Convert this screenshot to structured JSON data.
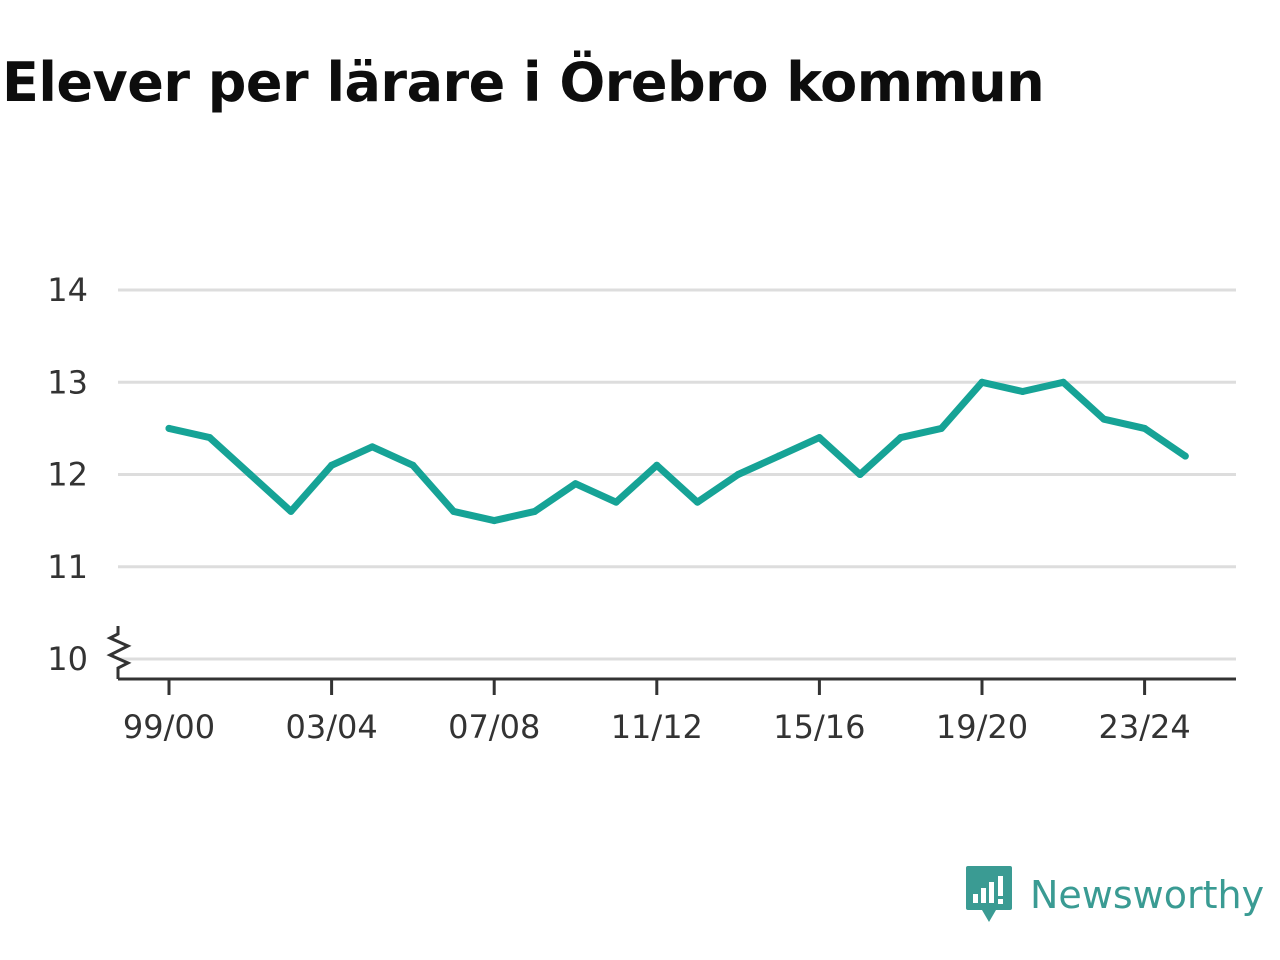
{
  "title": "Elever per lärare i Örebro kommun",
  "brand": {
    "name": "Newsworthy",
    "icon": "newsworthy-logo-icon",
    "color": "#3a9b93"
  },
  "colors": {
    "line": "#16a396",
    "grid": "#dddddd",
    "axis": "#333333",
    "text": "#333333"
  },
  "chart_data": {
    "type": "line",
    "title": "Elever per lärare i Örebro kommun",
    "xlabel": "",
    "ylabel": "",
    "ylim": [
      10,
      14
    ],
    "y_ticks": [
      "10",
      "11",
      "12",
      "13",
      "14"
    ],
    "axis_break": true,
    "grid": true,
    "x": [
      "99/00",
      "00/01",
      "01/02",
      "02/03",
      "03/04",
      "04/05",
      "05/06",
      "06/07",
      "07/08",
      "08/09",
      "09/10",
      "10/11",
      "11/12",
      "12/13",
      "13/14",
      "14/15",
      "15/16",
      "16/17",
      "17/18",
      "18/19",
      "19/20",
      "20/21",
      "21/22",
      "22/23",
      "23/24",
      "24/25"
    ],
    "x_tick_labels": [
      "99/00",
      "03/04",
      "07/08",
      "11/12",
      "15/16",
      "19/20",
      "23/24"
    ],
    "series": [
      {
        "values": [
          12.5,
          12.4,
          12.0,
          11.6,
          12.1,
          12.3,
          12.1,
          11.6,
          11.5,
          11.6,
          11.9,
          11.7,
          12.1,
          11.7,
          12.0,
          12.2,
          12.4,
          12.0,
          12.4,
          12.5,
          13.0,
          12.9,
          13.0,
          12.6,
          12.5,
          12.2
        ]
      }
    ]
  }
}
